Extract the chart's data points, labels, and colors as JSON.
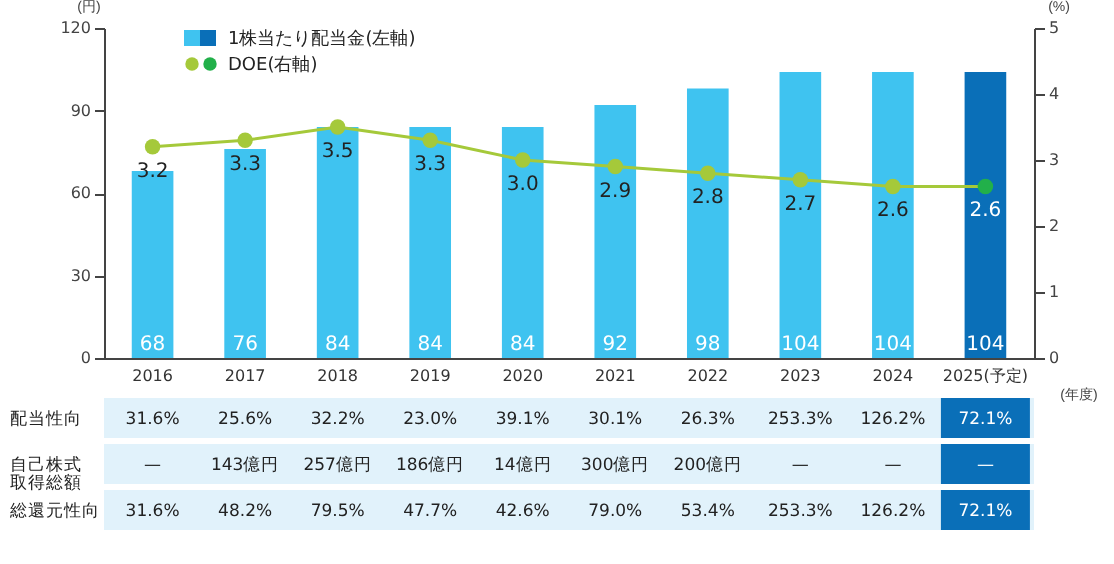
{
  "chart_data": {
    "type": "bar",
    "categories": [
      "2016",
      "2017",
      "2018",
      "2019",
      "2020",
      "2021",
      "2022",
      "2023",
      "2024",
      "2025(予定)"
    ],
    "ylabel": "(円)",
    "y2label": "(%)",
    "xlabel": "(年度)",
    "series": [
      {
        "name": "1株当たり配当金(左軸)",
        "color": "#3fc3f0",
        "colors": [
          "#3fc3f0",
          "#3fc3f0",
          "#3fc3f0",
          "#3fc3f0",
          "#3fc3f0",
          "#3fc3f0",
          "#3fc3f0",
          "#3fc3f0",
          "#3fc3f0",
          "#0a6fb8"
        ],
        "values": [
          68,
          76,
          84,
          84,
          84,
          92,
          98,
          104,
          104,
          104
        ]
      },
      {
        "name": "DOE(右軸)",
        "type": "line",
        "axis": "y2",
        "color": "#a5c93a",
        "colors": [
          "#a5c93a",
          "#a5c93a",
          "#a5c93a",
          "#a5c93a",
          "#a5c93a",
          "#a5c93a",
          "#a5c93a",
          "#a5c93a",
          "#a5c93a",
          "#22b04a"
        ],
        "values": [
          3.2,
          3.3,
          3.5,
          3.3,
          3.0,
          2.9,
          2.8,
          2.7,
          2.6,
          2.6
        ],
        "value_labels": [
          "3.2",
          "3.3",
          "3.5",
          "3.3",
          "3.0",
          "2.9",
          "2.8",
          "2.7",
          "2.6",
          "2.6"
        ]
      }
    ],
    "ylim": [
      0,
      120
    ],
    "yticks": [
      0,
      30,
      60,
      90,
      120
    ],
    "y2lim": [
      0,
      5
    ],
    "y2ticks": [
      0,
      1,
      2,
      3,
      4,
      5
    ],
    "data_labels": true,
    "grid": false,
    "legend": "top left",
    "marker": "circle",
    "annotations": [
      "配当性向",
      "31.6%",
      "25.6%",
      "32.2%",
      "23.0%",
      "39.1%",
      "30.1%",
      "26.3%",
      "253.3%",
      "126.2%",
      "72.1%",
      "自己株式取得総額",
      "—",
      "143億円",
      "257億円",
      "186億円",
      "14億円",
      "300億円",
      "200億円",
      "—",
      "—",
      "—",
      "総還元性向",
      "31.6%",
      "48.2%",
      "79.5%",
      "47.7%",
      "42.6%",
      "79.0%",
      "53.4%",
      "253.3%",
      "126.2%",
      "72.1%"
    ]
  }
}
